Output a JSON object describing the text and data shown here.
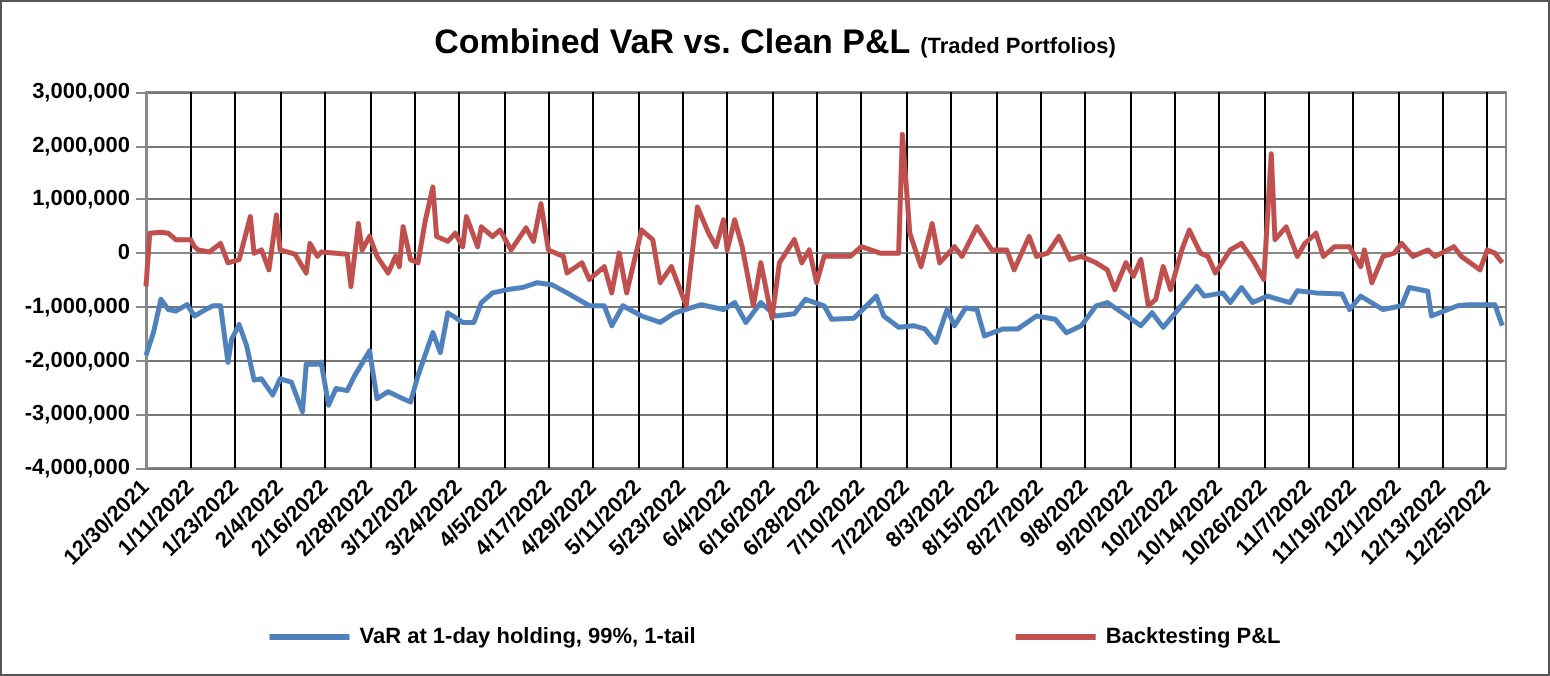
{
  "chart_data": {
    "type": "line",
    "title": "Combined VaR vs. Clean P&L",
    "subtitle": "(Traded Portfolios)",
    "xlim": [
      "2021-12-30",
      "2022-12-30"
    ],
    "xticks": [
      {
        "value": "2021-12-30",
        "label": "12/30/2021"
      },
      {
        "value": "2022-01-11",
        "label": "1/11/2022"
      },
      {
        "value": "2022-01-23",
        "label": "1/23/2022"
      },
      {
        "value": "2022-02-04",
        "label": "2/4/2022"
      },
      {
        "value": "2022-02-16",
        "label": "2/16/2022"
      },
      {
        "value": "2022-02-28",
        "label": "2/28/2022"
      },
      {
        "value": "2022-03-12",
        "label": "3/12/2022"
      },
      {
        "value": "2022-03-24",
        "label": "3/24/2022"
      },
      {
        "value": "2022-04-05",
        "label": "4/5/2022"
      },
      {
        "value": "2022-04-17",
        "label": "4/17/2022"
      },
      {
        "value": "2022-04-29",
        "label": "4/29/2022"
      },
      {
        "value": "2022-05-11",
        "label": "5/11/2022"
      },
      {
        "value": "2022-05-23",
        "label": "5/23/2022"
      },
      {
        "value": "2022-06-04",
        "label": "6/4/2022"
      },
      {
        "value": "2022-06-16",
        "label": "6/16/2022"
      },
      {
        "value": "2022-06-28",
        "label": "6/28/2022"
      },
      {
        "value": "2022-07-10",
        "label": "7/10/2022"
      },
      {
        "value": "2022-07-22",
        "label": "7/22/2022"
      },
      {
        "value": "2022-08-03",
        "label": "8/3/2022"
      },
      {
        "value": "2022-08-15",
        "label": "8/15/2022"
      },
      {
        "value": "2022-08-27",
        "label": "8/27/2022"
      },
      {
        "value": "2022-09-08",
        "label": "9/8/2022"
      },
      {
        "value": "2022-09-20",
        "label": "9/20/2022"
      },
      {
        "value": "2022-10-02",
        "label": "10/2/2022"
      },
      {
        "value": "2022-10-14",
        "label": "10/14/2022"
      },
      {
        "value": "2022-10-26",
        "label": "10/26/2022"
      },
      {
        "value": "2022-11-07",
        "label": "11/7/2022"
      },
      {
        "value": "2022-11-19",
        "label": "11/19/2022"
      },
      {
        "value": "2022-12-01",
        "label": "12/1/2022"
      },
      {
        "value": "2022-12-13",
        "label": "12/13/2022"
      },
      {
        "value": "2022-12-25",
        "label": "12/25/2022"
      }
    ],
    "ylim": [
      -4000000,
      3000000
    ],
    "yticks": [
      {
        "value": -4000000,
        "label": "-4,000,000"
      },
      {
        "value": -3000000,
        "label": "-3,000,000"
      },
      {
        "value": -2000000,
        "label": "-2,000,000"
      },
      {
        "value": -1000000,
        "label": "-1,000,000"
      },
      {
        "value": 0,
        "label": "0"
      },
      {
        "value": 1000000,
        "label": "1,000,000"
      },
      {
        "value": 2000000,
        "label": "2,000,000"
      },
      {
        "value": 3000000,
        "label": "3,000,000"
      }
    ],
    "grid": true,
    "legend": "bottom",
    "series": [
      {
        "name": "VaR at 1-day holding, 99%, 1-tail",
        "color": "#4f81bd",
        "x": [
          "2021-12-30",
          "2022-01-01",
          "2022-01-03",
          "2022-01-05",
          "2022-01-07",
          "2022-01-10",
          "2022-01-12",
          "2022-01-15",
          "2022-01-17",
          "2022-01-19",
          "2022-01-21",
          "2022-01-22",
          "2022-01-24",
          "2022-01-26",
          "2022-01-28",
          "2022-01-30",
          "2022-02-02",
          "2022-02-04",
          "2022-02-07",
          "2022-02-10",
          "2022-02-11",
          "2022-02-14",
          "2022-02-15",
          "2022-02-17",
          "2022-02-19",
          "2022-02-22",
          "2022-02-24",
          "2022-02-28",
          "2022-03-02",
          "2022-03-05",
          "2022-03-09",
          "2022-03-11",
          "2022-03-13",
          "2022-03-17",
          "2022-03-19",
          "2022-03-21",
          "2022-03-25",
          "2022-03-28",
          "2022-03-30",
          "2022-04-02",
          "2022-04-06",
          "2022-04-10",
          "2022-04-14",
          "2022-04-18",
          "2022-04-22",
          "2022-04-28",
          "2022-05-02",
          "2022-05-04",
          "2022-05-07",
          "2022-05-12",
          "2022-05-17",
          "2022-05-21",
          "2022-05-28",
          "2022-06-03",
          "2022-06-06",
          "2022-06-09",
          "2022-06-13",
          "2022-06-17",
          "2022-06-22",
          "2022-06-25",
          "2022-06-30",
          "2022-07-02",
          "2022-07-08",
          "2022-07-14",
          "2022-07-16",
          "2022-07-20",
          "2022-07-24",
          "2022-07-27",
          "2022-07-30",
          "2022-08-02",
          "2022-08-04",
          "2022-08-07",
          "2022-08-10",
          "2022-08-12",
          "2022-08-17",
          "2022-08-21",
          "2022-08-26",
          "2022-08-31",
          "2022-09-03",
          "2022-09-07",
          "2022-09-11",
          "2022-09-14",
          "2022-09-18",
          "2022-09-23",
          "2022-09-26",
          "2022-09-29",
          "2022-10-03",
          "2022-10-08",
          "2022-10-10",
          "2022-10-15",
          "2022-10-17",
          "2022-10-20",
          "2022-10-23",
          "2022-10-27",
          "2022-11-02",
          "2022-11-04",
          "2022-11-09",
          "2022-11-16",
          "2022-11-18",
          "2022-11-21",
          "2022-11-27",
          "2022-12-02",
          "2022-12-04",
          "2022-12-09",
          "2022-12-10",
          "2022-12-17",
          "2022-12-20",
          "2022-12-27",
          "2022-12-29"
        ],
        "values": [
          -1900000,
          -1480000,
          -860000,
          -1050000,
          -1080000,
          -960000,
          -1170000,
          -1050000,
          -980000,
          -980000,
          -2030000,
          -1600000,
          -1330000,
          -1720000,
          -2360000,
          -2340000,
          -2640000,
          -2340000,
          -2400000,
          -2950000,
          -2070000,
          -2070000,
          -2030000,
          -2830000,
          -2520000,
          -2560000,
          -2280000,
          -1820000,
          -2710000,
          -2580000,
          -2710000,
          -2770000,
          -2280000,
          -1480000,
          -1850000,
          -1110000,
          -1290000,
          -1290000,
          -920000,
          -740000,
          -680000,
          -640000,
          -550000,
          -590000,
          -740000,
          -980000,
          -980000,
          -1350000,
          -980000,
          -1170000,
          -1290000,
          -1110000,
          -960000,
          -1050000,
          -920000,
          -1290000,
          -920000,
          -1170000,
          -1130000,
          -860000,
          -980000,
          -1230000,
          -1210000,
          -800000,
          -1170000,
          -1380000,
          -1350000,
          -1410000,
          -1660000,
          -1050000,
          -1350000,
          -1020000,
          -1050000,
          -1540000,
          -1410000,
          -1410000,
          -1170000,
          -1230000,
          -1480000,
          -1350000,
          -980000,
          -920000,
          -1110000,
          -1350000,
          -1110000,
          -1380000,
          -1050000,
          -620000,
          -800000,
          -740000,
          -920000,
          -640000,
          -920000,
          -800000,
          -920000,
          -700000,
          -740000,
          -760000,
          -1050000,
          -800000,
          -1050000,
          -980000,
          -640000,
          -710000,
          -1170000,
          -980000,
          -960000,
          -960000,
          -1350000
        ]
      },
      {
        "name": "Backtesting P&L",
        "color": "#c0504d",
        "x": [
          "2021-12-30",
          "2021-12-31",
          "2022-01-03",
          "2022-01-05",
          "2022-01-07",
          "2022-01-11",
          "2022-01-12",
          "2022-01-13",
          "2022-01-16",
          "2022-01-19",
          "2022-01-21",
          "2022-01-24",
          "2022-01-27",
          "2022-01-28",
          "2022-01-30",
          "2022-02-01",
          "2022-02-03",
          "2022-02-04",
          "2022-02-08",
          "2022-02-11",
          "2022-02-12",
          "2022-02-14",
          "2022-02-15",
          "2022-02-19",
          "2022-02-22",
          "2022-02-23",
          "2022-02-25",
          "2022-02-26",
          "2022-02-28",
          "2022-03-02",
          "2022-03-05",
          "2022-03-07",
          "2022-03-08",
          "2022-03-09",
          "2022-03-11",
          "2022-03-13",
          "2022-03-15",
          "2022-03-17",
          "2022-03-18",
          "2022-03-21",
          "2022-03-23",
          "2022-03-25",
          "2022-03-26",
          "2022-03-29",
          "2022-03-30",
          "2022-04-02",
          "2022-04-04",
          "2022-04-07",
          "2022-04-11",
          "2022-04-13",
          "2022-04-15",
          "2022-04-17",
          "2022-04-21",
          "2022-04-22",
          "2022-04-26",
          "2022-04-28",
          "2022-05-02",
          "2022-05-04",
          "2022-05-06",
          "2022-05-08",
          "2022-05-12",
          "2022-05-15",
          "2022-05-17",
          "2022-05-20",
          "2022-05-24",
          "2022-05-27",
          "2022-05-30",
          "2022-06-01",
          "2022-06-03",
          "2022-06-04",
          "2022-06-06",
          "2022-06-08",
          "2022-06-11",
          "2022-06-13",
          "2022-06-16",
          "2022-06-18",
          "2022-06-22",
          "2022-06-24",
          "2022-06-26",
          "2022-06-28",
          "2022-06-30",
          "2022-07-07",
          "2022-07-10",
          "2022-07-15",
          "2022-07-20",
          "2022-07-21",
          "2022-07-23",
          "2022-07-26",
          "2022-07-29",
          "2022-07-31",
          "2022-08-04",
          "2022-08-06",
          "2022-08-10",
          "2022-08-14",
          "2022-08-18",
          "2022-08-20",
          "2022-08-24",
          "2022-08-26",
          "2022-08-29",
          "2022-09-01",
          "2022-09-04",
          "2022-09-07",
          "2022-09-11",
          "2022-09-14",
          "2022-09-16",
          "2022-09-19",
          "2022-09-21",
          "2022-09-23",
          "2022-09-25",
          "2022-09-27",
          "2022-09-29",
          "2022-10-01",
          "2022-10-04",
          "2022-10-06",
          "2022-10-09",
          "2022-10-11",
          "2022-10-13",
          "2022-10-17",
          "2022-10-20",
          "2022-10-23",
          "2022-10-26",
          "2022-10-28",
          "2022-10-29",
          "2022-11-01",
          "2022-11-04",
          "2022-11-06",
          "2022-11-09",
          "2022-11-11",
          "2022-11-14",
          "2022-11-18",
          "2022-11-21",
          "2022-11-22",
          "2022-11-24",
          "2022-11-27",
          "2022-11-30",
          "2022-12-02",
          "2022-12-05",
          "2022-12-09",
          "2022-12-11",
          "2022-12-16",
          "2022-12-18",
          "2022-12-23",
          "2022-12-25",
          "2022-12-27",
          "2022-12-29"
        ],
        "values": [
          -620000,
          370000,
          390000,
          370000,
          250000,
          250000,
          120000,
          60000,
          20000,
          180000,
          -180000,
          -120000,
          680000,
          0,
          60000,
          -310000,
          710000,
          60000,
          -20000,
          -370000,
          180000,
          -60000,
          20000,
          0,
          -20000,
          -620000,
          550000,
          60000,
          310000,
          -60000,
          -370000,
          -60000,
          -250000,
          490000,
          -120000,
          -180000,
          620000,
          1230000,
          310000,
          220000,
          370000,
          120000,
          680000,
          120000,
          490000,
          310000,
          430000,
          60000,
          470000,
          220000,
          920000,
          60000,
          -60000,
          -370000,
          -180000,
          -490000,
          -250000,
          -740000,
          0,
          -740000,
          430000,
          250000,
          -550000,
          -250000,
          -980000,
          860000,
          370000,
          120000,
          620000,
          60000,
          620000,
          120000,
          -980000,
          -180000,
          -1210000,
          -180000,
          250000,
          -180000,
          60000,
          -550000,
          -60000,
          -60000,
          120000,
          0,
          0,
          2210000,
          370000,
          -250000,
          550000,
          -180000,
          120000,
          -60000,
          490000,
          60000,
          60000,
          -310000,
          310000,
          -60000,
          0,
          310000,
          -120000,
          -60000,
          -180000,
          -310000,
          -680000,
          -180000,
          -430000,
          -120000,
          -980000,
          -860000,
          -250000,
          -680000,
          60000,
          430000,
          0,
          -60000,
          -370000,
          60000,
          180000,
          -120000,
          -490000,
          1850000,
          250000,
          490000,
          -60000,
          180000,
          370000,
          -60000,
          120000,
          120000,
          -250000,
          60000,
          -550000,
          -60000,
          0,
          180000,
          -60000,
          60000,
          -60000,
          120000,
          -60000,
          -310000,
          60000,
          0,
          -180000
        ]
      }
    ]
  }
}
